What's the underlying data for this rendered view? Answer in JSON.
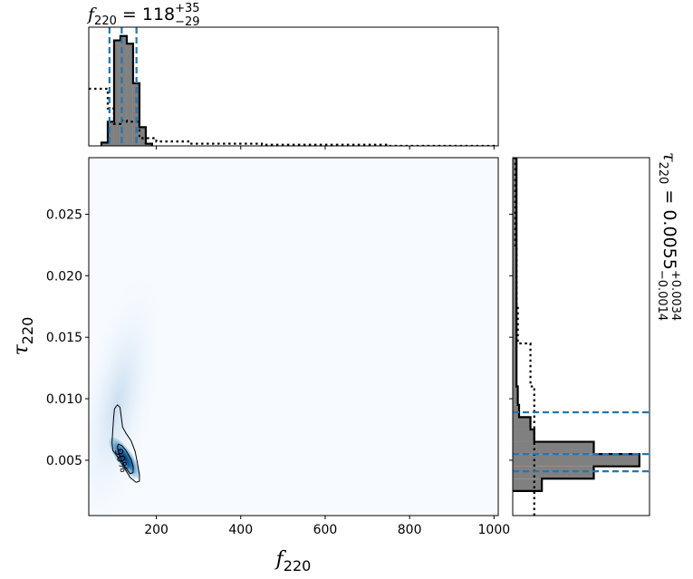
{
  "chart_data": [
    {
      "panel": "joint",
      "type": "heatmap",
      "xlabel": "f",
      "xlabel_sub": "220",
      "ylabel": "τ",
      "ylabel_sub": "220",
      "xlim": [
        40,
        1010
      ],
      "ylim": [
        0.0005,
        0.0296
      ],
      "xticks": [
        200,
        400,
        600,
        800,
        1000
      ],
      "xtick_labels": [
        "200",
        "400",
        "600",
        "800",
        "1000"
      ],
      "yticks": [
        0.005,
        0.01,
        0.015,
        0.02,
        0.025
      ],
      "ytick_labels": [
        "0.005",
        "0.010",
        "0.015",
        "0.020",
        "0.025"
      ],
      "colormap": "Blues",
      "density_peak": {
        "x": 125,
        "y": 0.0052
      },
      "contours": [
        {
          "label": "",
          "points": [
            [
              101,
              0.0092
            ],
            [
              108,
              0.0095
            ],
            [
              114,
              0.0093
            ],
            [
              117,
              0.0085
            ],
            [
              120,
              0.0077
            ],
            [
              128,
              0.0072
            ],
            [
              140,
              0.0066
            ],
            [
              150,
              0.0057
            ],
            [
              155,
              0.0048
            ],
            [
              160,
              0.0038
            ],
            [
              160,
              0.0033
            ],
            [
              152,
              0.0032
            ],
            [
              138,
              0.0036
            ],
            [
              122,
              0.0045
            ],
            [
              110,
              0.0052
            ],
            [
              97,
              0.0058
            ],
            [
              95,
              0.0064
            ],
            [
              97,
              0.0075
            ],
            [
              99,
              0.0085
            ]
          ]
        },
        {
          "label": "90%",
          "points": [
            [
              110,
              0.0063
            ],
            [
              118,
              0.0062
            ],
            [
              128,
              0.0058
            ],
            [
              140,
              0.0051
            ],
            [
              145,
              0.0045
            ],
            [
              145,
              0.004
            ],
            [
              138,
              0.0039
            ],
            [
              127,
              0.0044
            ],
            [
              116,
              0.0051
            ],
            [
              110,
              0.0057
            ],
            [
              108,
              0.0061
            ]
          ]
        }
      ]
    },
    {
      "panel": "x-marginal",
      "type": "histogram",
      "title_symbol": "f",
      "title_sub": "220",
      "title_value": " = 118",
      "title_sup": "+35",
      "title_lower": "−29",
      "bins": [
        {
          "x0": 70,
          "x1": 85,
          "count": 3
        },
        {
          "x0": 85,
          "x1": 100,
          "count": 22
        },
        {
          "x0": 100,
          "x1": 115,
          "count": 96
        },
        {
          "x0": 115,
          "x1": 130,
          "count": 100
        },
        {
          "x0": 130,
          "x1": 145,
          "count": 93
        },
        {
          "x0": 145,
          "x1": 160,
          "count": 57
        },
        {
          "x0": 160,
          "x1": 175,
          "count": 17
        },
        {
          "x0": 175,
          "x1": 190,
          "count": 2
        }
      ],
      "prior_steps": [
        [
          40,
          52
        ],
        [
          85,
          52
        ],
        [
          85,
          34
        ],
        [
          100,
          34
        ],
        [
          100,
          20
        ],
        [
          115,
          20
        ],
        [
          115,
          23
        ],
        [
          130,
          23
        ],
        [
          130,
          22
        ],
        [
          160,
          22
        ],
        [
          160,
          7
        ],
        [
          200,
          7
        ],
        [
          200,
          4
        ],
        [
          280,
          4
        ],
        [
          280,
          2
        ],
        [
          450,
          2
        ],
        [
          450,
          1
        ],
        [
          750,
          1
        ],
        [
          750,
          0
        ],
        [
          1010,
          0
        ]
      ],
      "median": 118,
      "interval": [
        89,
        153
      ],
      "ylim": [
        0,
        108
      ],
      "xticks": [
        200,
        400,
        600,
        800,
        1000
      ]
    },
    {
      "panel": "y-marginal",
      "type": "histogram",
      "orientation": "horizontal",
      "title_symbol": "τ",
      "title_sub": "220",
      "title_value": " = 0.0055",
      "title_sup": "+0.0034",
      "title_lower": "−0.0014",
      "bins": [
        {
          "y0": 0.0025,
          "y1": 0.0035,
          "count": 23
        },
        {
          "y0": 0.0035,
          "y1": 0.0045,
          "count": 64
        },
        {
          "y0": 0.0045,
          "y1": 0.0055,
          "count": 100
        },
        {
          "y0": 0.0055,
          "y1": 0.0065,
          "count": 64
        },
        {
          "y0": 0.0065,
          "y1": 0.0075,
          "count": 17
        },
        {
          "y0": 0.0075,
          "y1": 0.0085,
          "count": 14
        },
        {
          "y0": 0.0085,
          "y1": 0.0095,
          "count": 5
        },
        {
          "y0": 0.0095,
          "y1": 0.011,
          "count": 4
        },
        {
          "y0": 0.011,
          "y1": 0.0296,
          "count": 3
        }
      ],
      "prior_steps": [
        [
          0.0005,
          17
        ],
        [
          0.011,
          17
        ],
        [
          0.011,
          14
        ],
        [
          0.0145,
          14
        ],
        [
          0.0145,
          4
        ],
        [
          0.0175,
          4
        ],
        [
          0.0175,
          3
        ],
        [
          0.0222,
          3
        ],
        [
          0.0222,
          2
        ],
        [
          0.0296,
          2
        ]
      ],
      "median": 0.0055,
      "interval": [
        0.0041,
        0.0089
      ],
      "xlim": [
        0,
        108
      ],
      "yticks": [
        0.005,
        0.01,
        0.015,
        0.02,
        0.025
      ]
    }
  ],
  "colors": {
    "bar_fill": "#808080",
    "bar_edge": "#000000",
    "quantile_line": "#1f77b4",
    "contour": "#000000",
    "frame": "#000000"
  }
}
